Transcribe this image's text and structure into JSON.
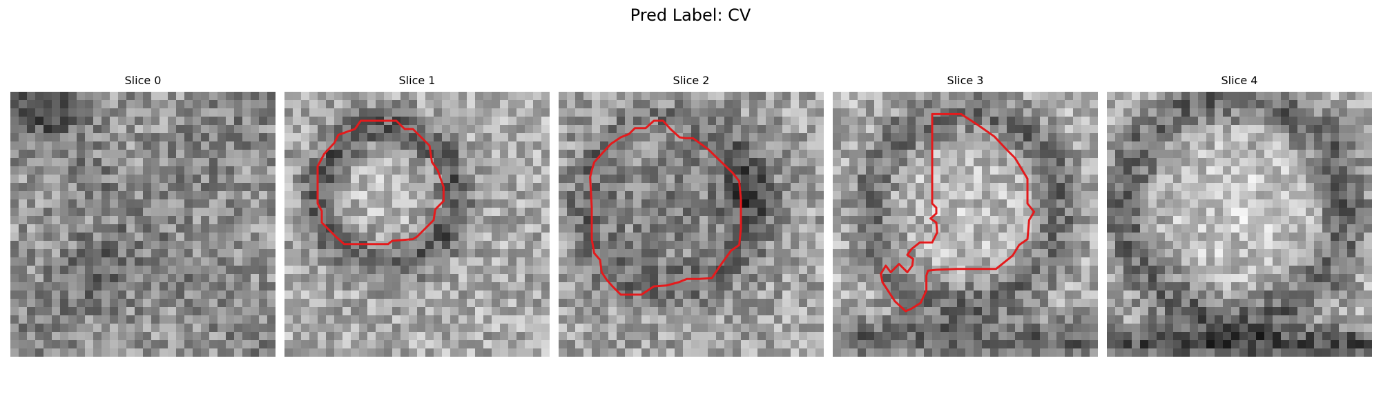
{
  "figure": {
    "title": "Pred Label: CV"
  },
  "panels": [
    {
      "title": "Slice 0",
      "has_contour": false
    },
    {
      "title": "Slice 1",
      "has_contour": true
    },
    {
      "title": "Slice 2",
      "has_contour": true
    },
    {
      "title": "Slice 3",
      "has_contour": true
    },
    {
      "title": "Slice 4",
      "has_contour": false
    }
  ],
  "colors": {
    "contour": "#e41a1c",
    "background": "#ffffff"
  }
}
